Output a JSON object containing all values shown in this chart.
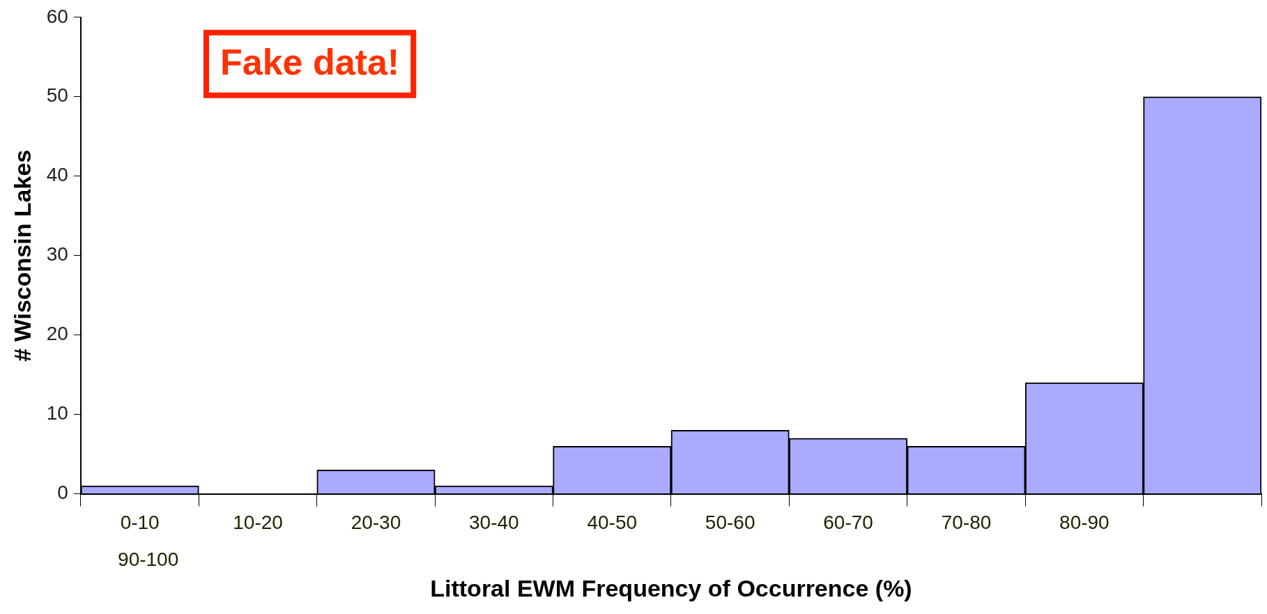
{
  "chart_data": {
    "type": "bar",
    "xlabel": "Littoral EWM Frequency of Occurrence (%)",
    "ylabel": "# Wisconsin Lakes",
    "categories": [
      "0-10",
      "10-20",
      "20-30",
      "30-40",
      "40-50",
      "50-60",
      "60-70",
      "70-80",
      "80-90",
      null
    ],
    "values": [
      1,
      0,
      3,
      1,
      6,
      8,
      7,
      6,
      14,
      50
    ],
    "color": "#aaaaff",
    "ylim": [
      0,
      60
    ],
    "yticks": [
      0,
      10,
      20,
      30,
      40,
      50,
      60
    ],
    "grid": false,
    "annotations": [
      "Fake data!",
      "90-100"
    ]
  }
}
